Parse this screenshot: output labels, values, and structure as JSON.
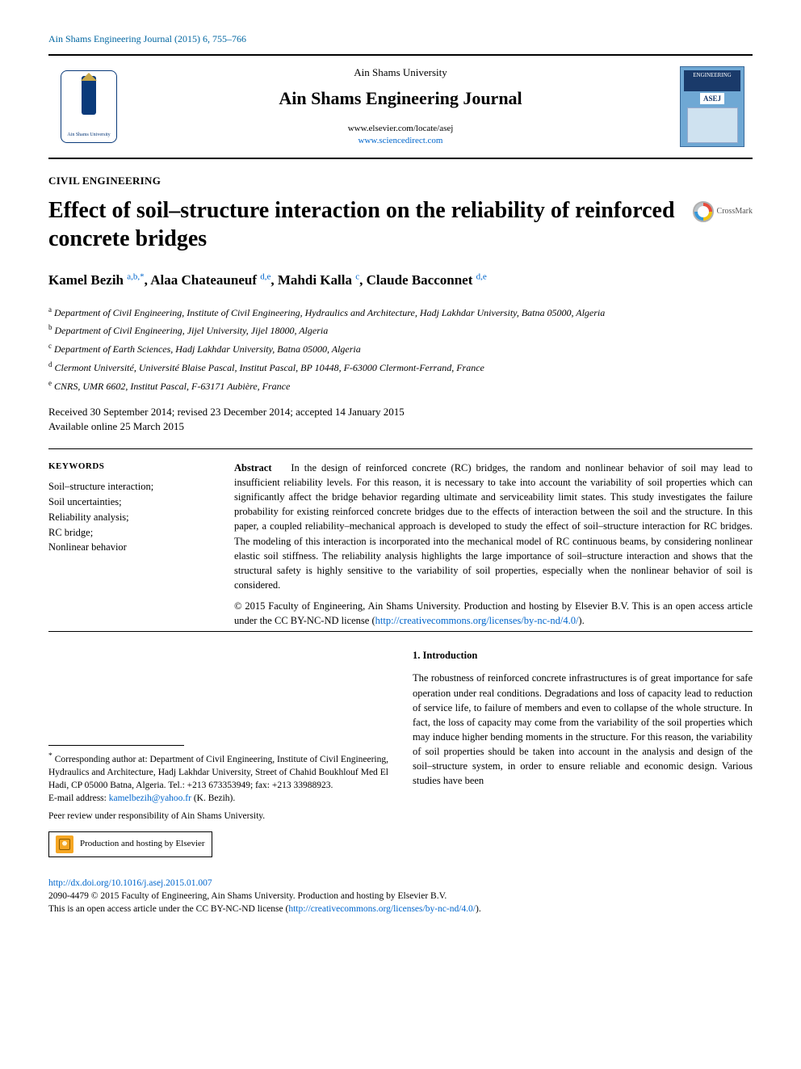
{
  "running_head": "Ain Shams Engineering Journal (2015) 6, 755–766",
  "masthead": {
    "hosted_by": "Ain Shams University",
    "journal_name": "Ain Shams Engineering Journal",
    "link1": "www.elsevier.com/locate/asej",
    "link2": "www.sciencedirect.com",
    "cover_top": "ENGINEERING",
    "cover_label": "ASEJ",
    "uni_caption": "Ain Shams University"
  },
  "section_label": "CIVIL ENGINEERING",
  "title": "Effect of soil–structure interaction on the reliability of reinforced concrete bridges",
  "crossmark": "CrossMark",
  "authors_html": "Kamel Bezih <sup>a,b,*</sup>, Alaa Chateauneuf <sup>d,e</sup>, Mahdi Kalla <sup>c</sup>, Claude Bacconnet <sup>d,e</sup>",
  "affiliations": [
    {
      "sup": "a",
      "text": "Department of Civil Engineering, Institute of Civil Engineering, Hydraulics and Architecture, Hadj Lakhdar University, Batna 05000, Algeria"
    },
    {
      "sup": "b",
      "text": "Department of Civil Engineering, Jijel University, Jijel 18000, Algeria"
    },
    {
      "sup": "c",
      "text": "Department of Earth Sciences, Hadj Lakhdar University, Batna 05000, Algeria"
    },
    {
      "sup": "d",
      "text": "Clermont Université, Université Blaise Pascal, Institut Pascal, BP 10448, F-63000 Clermont-Ferrand, France"
    },
    {
      "sup": "e",
      "text": "CNRS, UMR 6602, Institut Pascal, F-63171 Aubière, France"
    }
  ],
  "dates_line1": "Received 30 September 2014; revised 23 December 2014; accepted 14 January 2015",
  "dates_line2": "Available online 25 March 2015",
  "keywords_head": "KEYWORDS",
  "keywords": [
    "Soil–structure interaction;",
    "Soil uncertainties;",
    "Reliability analysis;",
    "RC bridge;",
    "Nonlinear behavior"
  ],
  "abstract_head": "Abstract",
  "abstract_body": "In the design of reinforced concrete (RC) bridges, the random and nonlinear behavior of soil may lead to insufficient reliability levels. For this reason, it is necessary to take into account the variability of soil properties which can significantly affect the bridge behavior regarding ultimate and serviceability limit states. This study investigates the failure probability for existing reinforced concrete bridges due to the effects of interaction between the soil and the structure. In this paper, a coupled reliability–mechanical approach is developed to study the effect of soil–structure interaction for RC bridges. The modeling of this interaction is incorporated into the mechanical model of RC continuous beams, by considering nonlinear elastic soil stiffness. The reliability analysis highlights the large importance of soil–structure interaction and shows that the structural safety is highly sensitive to the variability of soil properties, especially when the nonlinear behavior of soil is considered.",
  "copyright_line": "© 2015 Faculty of Engineering, Ain Shams University. Production and hosting by Elsevier B.V. This is an open access article under the CC BY-NC-ND license (",
  "cc_link_text": "http://creativecommons.org/licenses/by-nc-nd/4.0/",
  "copyright_close": ").",
  "intro_head": "1. Introduction",
  "intro_body": "The robustness of reinforced concrete infrastructures is of great importance for safe operation under real conditions. Degradations and loss of capacity lead to reduction of service life, to failure of members and even to collapse of the whole structure. In fact, the loss of capacity may come from the variability of the soil properties which may induce higher bending moments in the structure. For this reason, the variability of soil properties should be taken into account in the analysis and design of the soil–structure system, in order to ensure reliable and economic design. Various studies have been",
  "corr_marker": "*",
  "corr_text": "Corresponding author at: Department of Civil Engineering, Institute of Civil Engineering, Hydraulics and Architecture, Hadj Lakhdar University, Street of Chahid Boukhlouf Med El Hadi, CP 05000 Batna, Algeria. Tel.: +213 673353949; fax: +213 33988923.",
  "email_label": "E-mail address: ",
  "email": "kamelbezih@yahoo.fr",
  "email_who": " (K. Bezih).",
  "peer_review": "Peer review under responsibility of Ain Shams University.",
  "prod_text": "Production and hosting by Elsevier",
  "footer": {
    "doi": "http://dx.doi.org/10.1016/j.asej.2015.01.007",
    "line1": "2090-4479 © 2015 Faculty of Engineering, Ain Shams University. Production and hosting by Elsevier B.V.",
    "line2a": "This is an open access article under the CC BY-NC-ND license (",
    "line2_link": "http://creativecommons.org/licenses/by-nc-nd/4.0/",
    "line2b": ")."
  },
  "colors": {
    "link": "#0066cc",
    "head_blue": "#0066a1",
    "cover_bg": "#6fa8d4",
    "cover_dark": "#1a3a6a"
  }
}
